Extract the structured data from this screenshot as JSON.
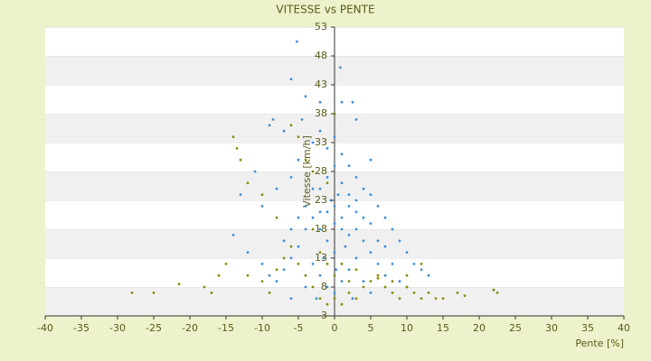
{
  "chart_data": {
    "type": "scatter",
    "title": "VITESSE vs PENTE",
    "x_label": "Pente [%]",
    "y_label": "Vitesse [km/h]",
    "xlim": [
      -40,
      40
    ],
    "xticks": [
      -40,
      -35,
      -30,
      -25,
      -20,
      -15,
      -10,
      -5,
      0,
      5,
      10,
      15,
      20,
      25,
      30,
      35,
      40
    ],
    "ylim": [
      3,
      53
    ],
    "yticks": [
      3,
      8,
      13,
      18,
      23,
      28,
      33,
      38,
      43,
      48,
      53
    ],
    "grid": true,
    "series": [
      {
        "color": "#3b8ed8",
        "x": [
          -5.2,
          0.8,
          -6,
          -4,
          -2,
          1,
          2.5,
          -8.5,
          -9,
          -4.5,
          3,
          -7,
          5,
          -11,
          -13,
          -14,
          -10,
          -8,
          -6,
          -5,
          -3,
          -2,
          -1,
          0,
          1,
          2,
          3,
          4,
          5,
          6,
          7,
          8,
          9,
          10,
          11,
          12,
          13,
          -4,
          -3,
          -2,
          -1,
          0,
          1,
          2,
          3,
          4,
          5,
          6,
          7,
          -5,
          -6,
          -7,
          -8,
          -9,
          -10,
          -12,
          -2,
          -1,
          0,
          1,
          2,
          3,
          -3,
          -2,
          -1,
          0,
          1,
          2,
          3,
          4,
          5,
          -4,
          -6,
          8,
          9,
          10,
          0,
          -1,
          1,
          0,
          2,
          -2,
          3,
          -3,
          4,
          -4,
          5,
          -5,
          6,
          -6,
          7,
          -7,
          0.5,
          -0.5,
          1.5,
          -1.5,
          0.2,
          2.5,
          -2.5
        ],
        "values": [
          50.5,
          46,
          44,
          41,
          40,
          40,
          40,
          37,
          36,
          37,
          37,
          35,
          30,
          28,
          24,
          17,
          22,
          25,
          27,
          30,
          33,
          35,
          32,
          34,
          31,
          29,
          27,
          25,
          24,
          22,
          20,
          18,
          16,
          14,
          12,
          11,
          10,
          22,
          20,
          18,
          16,
          14,
          20,
          22,
          18,
          16,
          14,
          12,
          10,
          15,
          13,
          11,
          9,
          10,
          12,
          14,
          25,
          27,
          29,
          26,
          24,
          23,
          12,
          10,
          8,
          7,
          9,
          11,
          13,
          9,
          7,
          8,
          6,
          12,
          9,
          8,
          22,
          21,
          18,
          19,
          17,
          21,
          21,
          25,
          20,
          18,
          19,
          20,
          16,
          18,
          15,
          16,
          24,
          23,
          15,
          13,
          11,
          6,
          6
        ]
      },
      {
        "color": "#8c8a00",
        "x": [
          -28,
          -25,
          -21.5,
          -18,
          -17,
          -14,
          -13.5,
          -13,
          -12,
          -10,
          -8,
          -6,
          -5,
          -4,
          -3,
          -15,
          -16,
          -12,
          -10,
          -9,
          -8,
          -7,
          -6,
          -5,
          -4,
          -3,
          -2,
          -1,
          0,
          1,
          2,
          3,
          4,
          5,
          6,
          7,
          8,
          9,
          10,
          11,
          12,
          13,
          14,
          15,
          17,
          18,
          22,
          22.5,
          -2,
          -1,
          0,
          1,
          2,
          3,
          0,
          -1,
          -3,
          6,
          8,
          10,
          12
        ],
        "values": [
          7,
          7,
          8.5,
          8,
          7,
          34,
          32,
          30,
          26,
          24,
          20,
          36,
          34,
          30,
          28,
          12,
          10,
          10,
          9,
          7,
          11,
          13,
          15,
          12,
          10,
          8,
          6,
          5,
          6,
          5,
          7,
          6,
          8,
          9,
          10,
          8,
          7,
          6,
          8,
          7,
          6,
          7,
          6,
          6,
          7,
          6.5,
          7.5,
          7,
          14,
          12,
          10,
          12,
          9,
          11,
          38,
          26,
          18,
          9.5,
          9,
          10,
          12
        ]
      }
    ]
  }
}
